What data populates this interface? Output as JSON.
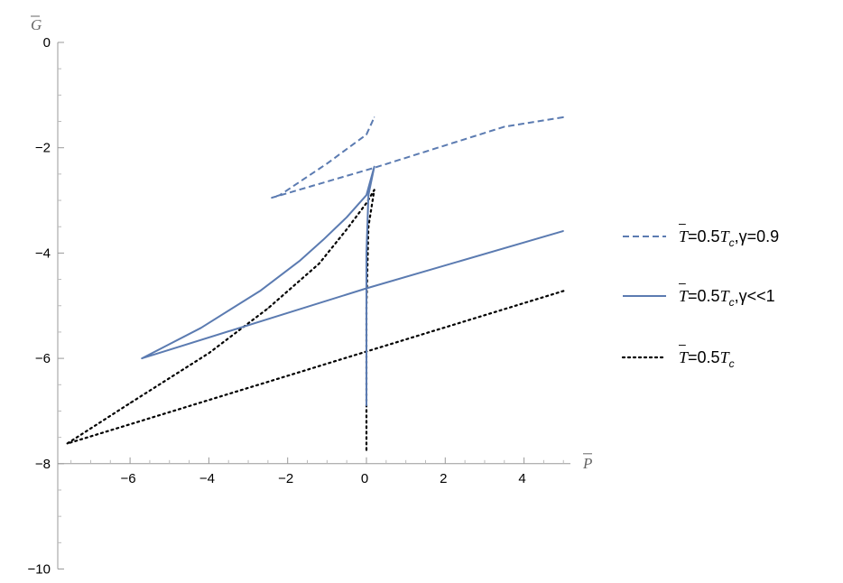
{
  "chart_data": {
    "type": "line",
    "xlabel": "P",
    "ylabel": "G",
    "xlim": [
      -7.6,
      5.0
    ],
    "ylim": [
      -10,
      0
    ],
    "xticks": [
      -6,
      -4,
      -2,
      0,
      2,
      4
    ],
    "yticks": [
      0,
      -2,
      -4,
      -6,
      -8,
      -10
    ],
    "xtick_labels": [
      "−6",
      "−4",
      "−2",
      "0",
      "2",
      "4"
    ],
    "ytick_labels": [
      "0",
      "−2",
      "−4",
      "−6",
      "−8",
      "−10"
    ],
    "grid": false,
    "legend_position": "right",
    "series": [
      {
        "name": "T=0.5T_c,γ=0.9",
        "legend": {
          "main": "T",
          "sup": "–",
          "mid": "=0.5T",
          "sub": "c",
          "tail": ",γ=0.9"
        },
        "style": "dashed",
        "color": "#5b7bb1",
        "x": [
          5.0,
          3.5,
          0.2,
          -2.4,
          -2.2,
          -1.0,
          0.0,
          0.2
        ],
        "y": [
          -1.42,
          -1.6,
          -2.38,
          -2.95,
          -2.9,
          -2.3,
          -1.75,
          -1.42
        ]
      },
      {
        "name": "T=0.5T_c,γ<<1",
        "legend": {
          "main": "T",
          "sup": "–",
          "mid": "=0.5T",
          "sub": "c",
          "tail": ",γ<<1"
        },
        "style": "solid",
        "color": "#5b7bb1",
        "x": [
          5.0,
          0.0,
          -5.7,
          -4.2,
          -2.7,
          -1.7,
          -1.1,
          -0.5,
          0.0,
          0.2,
          0.05,
          0.0,
          0.0,
          0.0,
          0.0
        ],
        "y": [
          -3.58,
          -4.67,
          -6.0,
          -5.42,
          -4.72,
          -4.15,
          -3.75,
          -3.32,
          -2.9,
          -2.36,
          -2.9,
          -4.0,
          -5.5,
          -6.5,
          -6.9
        ]
      },
      {
        "name": "T=0.5T_c",
        "legend": {
          "main": "T",
          "sup": "–",
          "mid": "=0.5T",
          "sub": "c",
          "tail": ""
        },
        "style": "dotted",
        "color": "#000000",
        "x": [
          5.0,
          0.0,
          -7.6,
          -6.0,
          -4.0,
          -2.5,
          -1.2,
          -0.5,
          0.0,
          0.2,
          0.05,
          0.0,
          0.0,
          0.0
        ],
        "y": [
          -4.72,
          -5.87,
          -7.62,
          -6.85,
          -5.9,
          -5.05,
          -4.2,
          -3.55,
          -3.05,
          -2.8,
          -3.5,
          -5.0,
          -6.5,
          -7.75
        ]
      }
    ]
  }
}
